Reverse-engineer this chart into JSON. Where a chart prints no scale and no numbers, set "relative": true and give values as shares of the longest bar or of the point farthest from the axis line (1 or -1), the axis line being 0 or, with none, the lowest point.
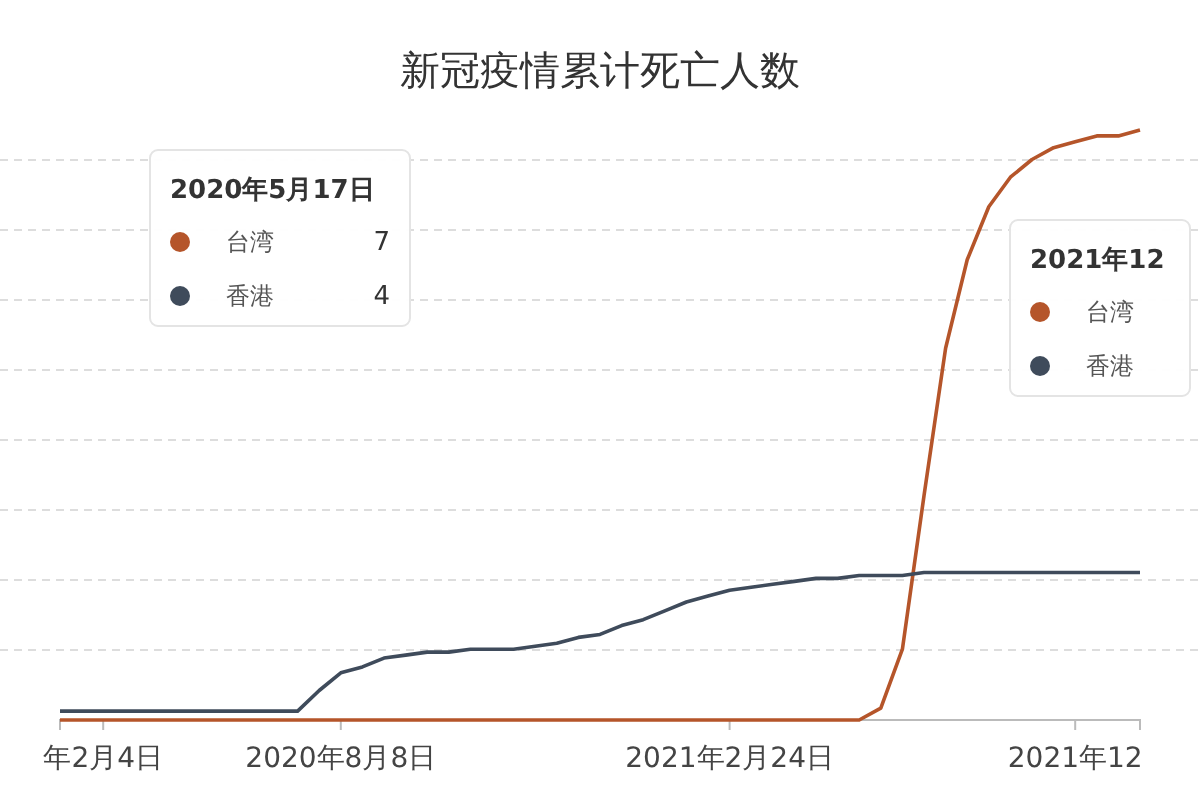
{
  "chart_data": {
    "type": "line",
    "title": "新冠疫情累计死亡人数",
    "relative": true,
    "grid": "y",
    "legend": "top left",
    "legend_title": "2020年5月17日",
    "marker": "none",
    "categories": [
      null,
      null,
      "年2月4日",
      null,
      null,
      null,
      null,
      null,
      null,
      null,
      null,
      null,
      null,
      "2020年8月8日",
      null,
      null,
      null,
      null,
      null,
      null,
      null,
      null,
      null,
      null,
      null,
      null,
      null,
      null,
      null,
      null,
      null,
      "2021年2月24日",
      null,
      null,
      null,
      null,
      null,
      null,
      null,
      null,
      null,
      null,
      null,
      null,
      null,
      null,
      null,
      "2021年12",
      null,
      null,
      null
    ],
    "series": [
      {
        "name": "台湾",
        "color": "#b5552a",
        "values": [
          0,
          0,
          0,
          0,
          0,
          0,
          0,
          0,
          0,
          0,
          0,
          0,
          0,
          0,
          0,
          0,
          0,
          0,
          0,
          0,
          0,
          0,
          0,
          0,
          0,
          0,
          0,
          0,
          0,
          0,
          0,
          0,
          0,
          0,
          0,
          0,
          0,
          0,
          0.02,
          0.12,
          0.38,
          0.63,
          0.78,
          0.87,
          0.92,
          0.95,
          0.97,
          0.98,
          0.99,
          0.99,
          1
        ]
      },
      {
        "name": "香港",
        "color": "#3f4b5b",
        "values": [
          0.015,
          0.015,
          0.015,
          0.015,
          0.015,
          0.015,
          0.015,
          0.015,
          0.015,
          0.015,
          0.015,
          0.015,
          0.05,
          0.08,
          0.09,
          0.105,
          0.11,
          0.115,
          0.115,
          0.12,
          0.12,
          0.12,
          0.125,
          0.13,
          0.14,
          0.145,
          0.16,
          0.17,
          0.185,
          0.2,
          0.21,
          0.22,
          0.225,
          0.23,
          0.235,
          0.24,
          0.24,
          0.245,
          0.245,
          0.245,
          0.25,
          0.25,
          0.25,
          0.25,
          0.25,
          0.25,
          0.25,
          0.25,
          0.25,
          0.25,
          0.25
        ]
      }
    ],
    "annotations": [
      "7",
      "4",
      "2021年12"
    ]
  }
}
